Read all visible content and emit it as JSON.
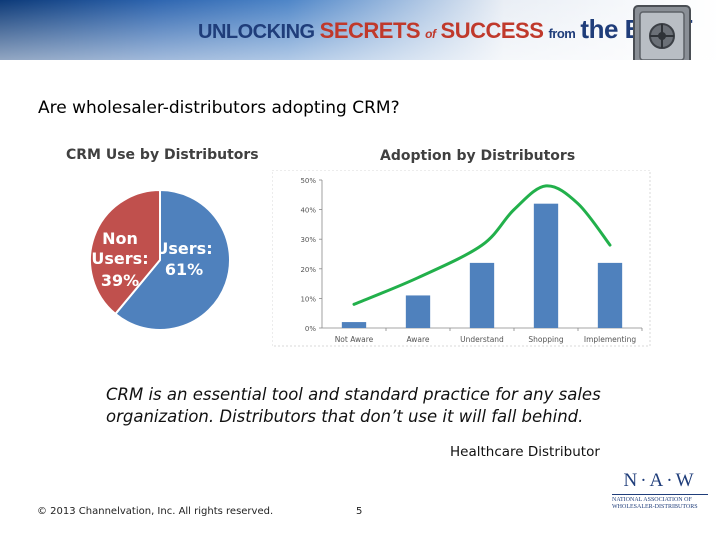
{
  "banner": {
    "part1": "UNLOCKING",
    "part2": "SECRETS",
    "part3": "of",
    "part4": "SUCCESS",
    "part5": "from",
    "part6": "the BEST"
  },
  "slide_title": "Are wholesaler-distributors adopting CRM?",
  "quote": "CRM is an essential tool and standard practice for any sales organization. Distributors that don’t use it will fall behind.",
  "source": "Healthcare Distributor",
  "footer": {
    "copyright": "© 2013 Channelvation, Inc. All rights reserved.",
    "page": "5"
  },
  "logo": {
    "letters": "N·A·W",
    "line1": "NATIONAL ASSOCIATION OF",
    "line2": "WHOLESALER-DISTRIBUTORS"
  },
  "colors": {
    "banner_dark": "#0d3a78",
    "banner_accent": "#c0392b",
    "pie_users": "#4f81bd",
    "pie_non_users": "#c0504d",
    "bar": "#4f81bd",
    "trend": "#22b04b"
  },
  "chart_data": [
    {
      "type": "pie",
      "title": "CRM Use by Distributors",
      "slices": [
        {
          "label": "Users:",
          "pct_label": "61%",
          "value": 61
        },
        {
          "label": "Non Users:",
          "pct_label": "39%",
          "value": 39
        }
      ],
      "labels_inside": true
    },
    {
      "type": "bar",
      "title": "Adoption by Distributors",
      "categories": [
        "Not Aware",
        "Aware",
        "Understand",
        "Shopping",
        "Implementing"
      ],
      "values": [
        2,
        11,
        22,
        42,
        22
      ],
      "trend_line": {
        "x": [
          0,
          1,
          2,
          2.5,
          3,
          3.5,
          4
        ],
        "y": [
          8,
          17,
          28,
          40,
          48,
          42,
          28
        ]
      },
      "ylim": [
        0,
        50
      ],
      "yticks": [
        "0%",
        "10%",
        "20%",
        "30%",
        "40%",
        "50%"
      ],
      "xlabel": "",
      "ylabel": "",
      "grid": false,
      "legend": "none"
    }
  ]
}
